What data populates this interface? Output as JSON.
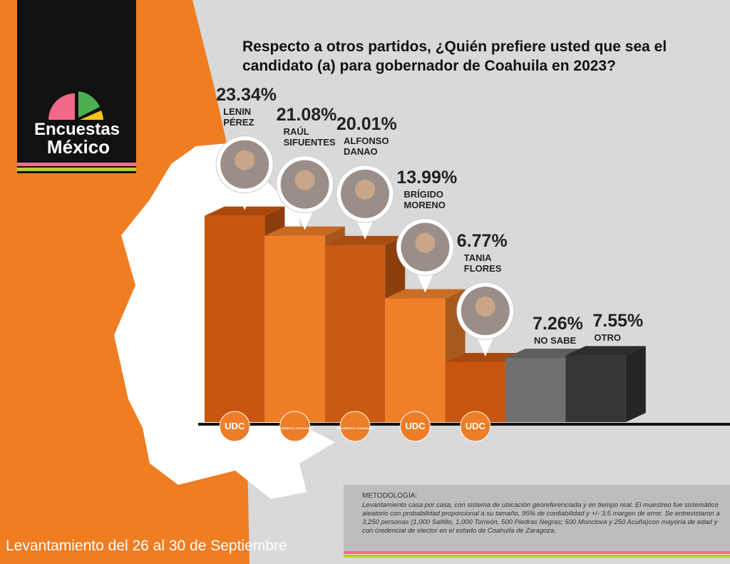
{
  "brand_top": "Encuestas",
  "brand_bottom": "México",
  "chart_data": {
    "type": "bar",
    "title": "Respecto a otros partidos, ¿Quién prefiere usted que sea el candidato (a) para gobernador de Coahuila en 2023?",
    "categories": [
      "LENIN\nPÉREZ",
      "RAÚL\nSIFUENTES",
      "ALFONSO\nDANAO",
      "BRÍGIDO\nMORENO",
      "TANIA\nFLORES",
      "NO SABE",
      "OTRO"
    ],
    "values": [
      23.34,
      21.08,
      20.01,
      13.99,
      6.77,
      7.26,
      7.55
    ],
    "value_labels": [
      "23.34%",
      "21.08%",
      "20.01%",
      "13.99%",
      "6.77%",
      "7.26%",
      "7.55%"
    ],
    "colors": [
      "#c9560f",
      "#ee7d28",
      "#c85a13",
      "#ef8029",
      "#c85611",
      "#6f6f6f",
      "#353535"
    ],
    "parties": [
      "UDC",
      "MOVIMIENTO CIUDADANO",
      "MOVIMIENTO CIUDADANO",
      "UDC",
      "UDC",
      null,
      null
    ]
  },
  "footer": "Levantamiento del 26 al 30 de Septiembre",
  "methodology": {
    "heading": "METODOLOGÍA:",
    "body": "Levantamiento casa por casa, con sistema de ubicación georeferenciada y en tiempo real. El muestreo fue sistemático aleatorio con probabilidad proporcional a su tamaño, 95% de confiabilidad y +/- 3.5 margen de error. Se entrevistaron a 3,250 personas  (1,000 Saltillo, 1,000 Torreón, 500 Piedras Negras; 500 Monclova y 250 Acuña)con mayoría de edad y con credencial de elector en el estado de Coahuila de Zaragoza."
  }
}
